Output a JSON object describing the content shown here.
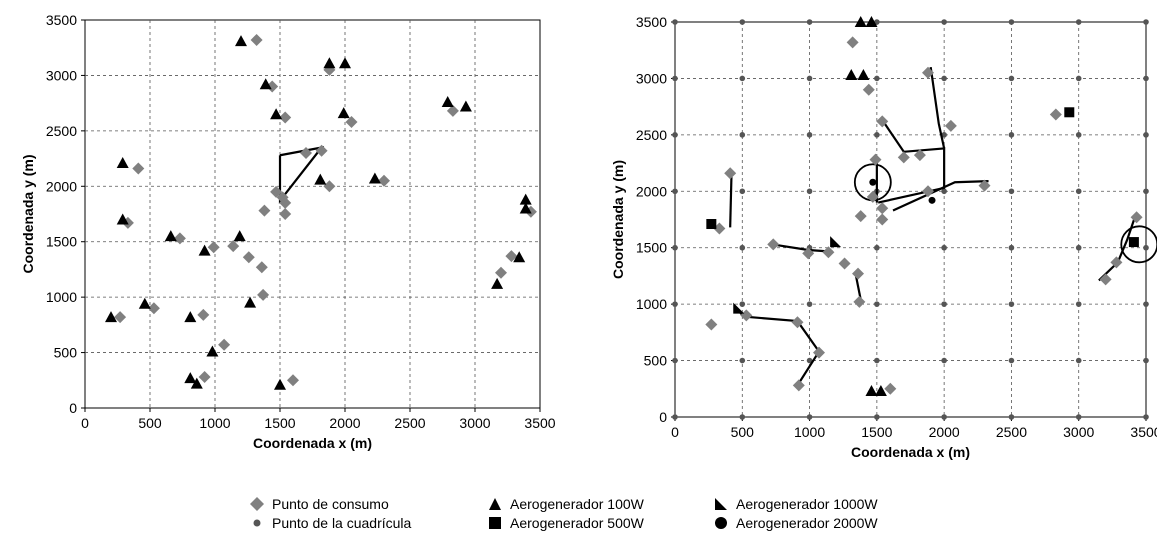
{
  "chart_data": [
    {
      "type": "scatter",
      "xlabel": "Coordenada  x (m)",
      "ylabel": "Coordenada y (m)",
      "xlim": [
        0,
        3500
      ],
      "ylim": [
        0,
        3500
      ],
      "xticks": [
        0,
        500,
        1000,
        1500,
        2000,
        2500,
        3000,
        3500
      ],
      "yticks": [
        0,
        500,
        1000,
        1500,
        2000,
        2500,
        3000,
        3500
      ],
      "grid": true,
      "series": [
        {
          "name": "Punto de consumo",
          "marker": "diamond",
          "color": "#808080",
          "points": [
            [
              1320,
              3320
            ],
            [
              1440,
              2900
            ],
            [
              1540,
              2620
            ],
            [
              1880,
              3050
            ],
            [
              2050,
              2580
            ],
            [
              2830,
              2680
            ],
            [
              1820,
              2320
            ],
            [
              1700,
              2300
            ],
            [
              1880,
              2000
            ],
            [
              2300,
              2050
            ],
            [
              410,
              2160
            ],
            [
              330,
              1670
            ],
            [
              730,
              1530
            ],
            [
              990,
              1450
            ],
            [
              1140,
              1460
            ],
            [
              1370,
              1020
            ],
            [
              1360,
              1270
            ],
            [
              1260,
              1360
            ],
            [
              920,
              280
            ],
            [
              1070,
              570
            ],
            [
              1600,
              250
            ],
            [
              270,
              820
            ],
            [
              530,
              900
            ],
            [
              910,
              840
            ],
            [
              3200,
              1220
            ],
            [
              3280,
              1370
            ],
            [
              3430,
              1770
            ],
            [
              1380,
              1780
            ],
            [
              1540,
              1750
            ],
            [
              1540,
              1850
            ],
            [
              1470,
              1950
            ],
            [
              1520,
              1900
            ]
          ]
        },
        {
          "name": "Aerogenerador 100W",
          "marker": "triangle",
          "color": "#000000",
          "points": [
            [
              1200,
              3310
            ],
            [
              1880,
              3110
            ],
            [
              2000,
              3110
            ],
            [
              1390,
              2920
            ],
            [
              1470,
              2650
            ],
            [
              1990,
              2660
            ],
            [
              2790,
              2760
            ],
            [
              2930,
              2720
            ],
            [
              1810,
              2060
            ],
            [
              2230,
              2070
            ],
            [
              290,
              2210
            ],
            [
              290,
              1700
            ],
            [
              660,
              1550
            ],
            [
              920,
              1420
            ],
            [
              1190,
              1550
            ],
            [
              1270,
              950
            ],
            [
              460,
              940
            ],
            [
              810,
              820
            ],
            [
              200,
              820
            ],
            [
              980,
              510
            ],
            [
              810,
              270
            ],
            [
              860,
              220
            ],
            [
              1500,
              210
            ],
            [
              3170,
              1120
            ],
            [
              3340,
              1360
            ],
            [
              3390,
              1880
            ],
            [
              3390,
              1800
            ]
          ]
        }
      ],
      "polyline": [
        [
          1500,
          2280
        ],
        [
          1500,
          1870
        ],
        [
          1820,
          2350
        ],
        [
          1500,
          2280
        ]
      ]
    },
    {
      "type": "scatter",
      "xlabel": "Coordenada x (m)",
      "ylabel": "Coordenada y (m)",
      "xlim": [
        0,
        3500
      ],
      "ylim": [
        0,
        3500
      ],
      "xticks": [
        0,
        500,
        1000,
        1500,
        2000,
        2500,
        3000,
        3500
      ],
      "yticks": [
        0,
        500,
        1000,
        1500,
        2000,
        2500,
        3000,
        3500
      ],
      "grid": true,
      "series": [
        {
          "name": "Punto de consumo",
          "marker": "diamond",
          "color": "#808080",
          "points": [
            [
              1320,
              3320
            ],
            [
              1440,
              2900
            ],
            [
              1540,
              2620
            ],
            [
              1880,
              3050
            ],
            [
              2050,
              2580
            ],
            [
              2830,
              2680
            ],
            [
              1820,
              2320
            ],
            [
              1700,
              2300
            ],
            [
              1880,
              2000
            ],
            [
              2300,
              2050
            ],
            [
              410,
              2160
            ],
            [
              330,
              1670
            ],
            [
              730,
              1530
            ],
            [
              990,
              1450
            ],
            [
              1140,
              1460
            ],
            [
              1370,
              1020
            ],
            [
              1360,
              1270
            ],
            [
              1260,
              1360
            ],
            [
              920,
              280
            ],
            [
              1070,
              570
            ],
            [
              1600,
              250
            ],
            [
              270,
              820
            ],
            [
              530,
              900
            ],
            [
              910,
              840
            ],
            [
              3200,
              1220
            ],
            [
              3280,
              1370
            ],
            [
              3430,
              1770
            ],
            [
              1380,
              1780
            ],
            [
              1540,
              1750
            ],
            [
              1540,
              1850
            ],
            [
              1470,
              1950
            ],
            [
              1490,
              2280
            ]
          ]
        },
        {
          "name": "Aerogenerador 100W",
          "marker": "triangle",
          "color": "#000000",
          "points": [
            [
              1380,
              3500
            ],
            [
              1460,
              3500
            ],
            [
              1310,
              3030
            ],
            [
              1400,
              3030
            ],
            [
              1460,
              230
            ],
            [
              1530,
              230
            ]
          ]
        },
        {
          "name": "Aerogenerador 500W",
          "marker": "square",
          "color": "#000000",
          "points": [
            [
              270,
              1710
            ],
            [
              2930,
              2700
            ],
            [
              3410,
              1550
            ]
          ]
        },
        {
          "name": "Aerogenerador 1000W",
          "marker": "right-triangle",
          "color": "#000000",
          "points": [
            [
              470,
              960
            ],
            [
              1190,
              1550
            ]
          ]
        },
        {
          "name": "Aerogenerador 2000W",
          "marker": "circle",
          "color": "#000000",
          "points": [
            [
              1470,
              2080
            ],
            [
              1910,
              1920
            ]
          ]
        }
      ],
      "lines": [
        [
          [
            1530,
            2650
          ],
          [
            1700,
            2350
          ],
          [
            2000,
            2380
          ],
          [
            2000,
            2030
          ],
          [
            1510,
            1900
          ]
        ],
        [
          [
            1500,
            2290
          ],
          [
            1500,
            1900
          ]
        ],
        [
          [
            1900,
            3100
          ],
          [
            1960,
            2600
          ],
          [
            2000,
            2380
          ]
        ],
        [
          [
            1620,
            1830
          ],
          [
            2080,
            2080
          ],
          [
            2330,
            2090
          ]
        ],
        [
          [
            410,
            1680
          ],
          [
            420,
            2160
          ]
        ],
        [
          [
            720,
            1530
          ],
          [
            990,
            1480
          ],
          [
            1110,
            1470
          ],
          [
            1170,
            1470
          ]
        ],
        [
          [
            1340,
            1280
          ],
          [
            1380,
            1040
          ]
        ],
        [
          [
            460,
            960
          ],
          [
            510,
            890
          ],
          [
            910,
            850
          ],
          [
            1070,
            580
          ],
          [
            910,
            280
          ]
        ],
        [
          [
            3150,
            1210
          ],
          [
            3290,
            1370
          ],
          [
            3360,
            1570
          ],
          [
            3420,
            1780
          ]
        ]
      ],
      "circles": [
        [
          1470,
          2080
        ],
        [
          3450,
          1530
        ]
      ]
    }
  ],
  "legend": [
    {
      "label": "Punto de consumo",
      "marker": "diamond"
    },
    {
      "label": "Punto de la cuadrícula",
      "marker": "small-circle"
    },
    {
      "label": "Aerogenerador 100W",
      "marker": "triangle"
    },
    {
      "label": "Aerogenerador 500W",
      "marker": "square"
    },
    {
      "label": "Aerogenerador 1000W",
      "marker": "right-triangle"
    },
    {
      "label": "Aerogenerador 2000W",
      "marker": "circle"
    }
  ],
  "colors": {
    "grey": "#808080",
    "black": "#000000",
    "grid": "#555555"
  }
}
